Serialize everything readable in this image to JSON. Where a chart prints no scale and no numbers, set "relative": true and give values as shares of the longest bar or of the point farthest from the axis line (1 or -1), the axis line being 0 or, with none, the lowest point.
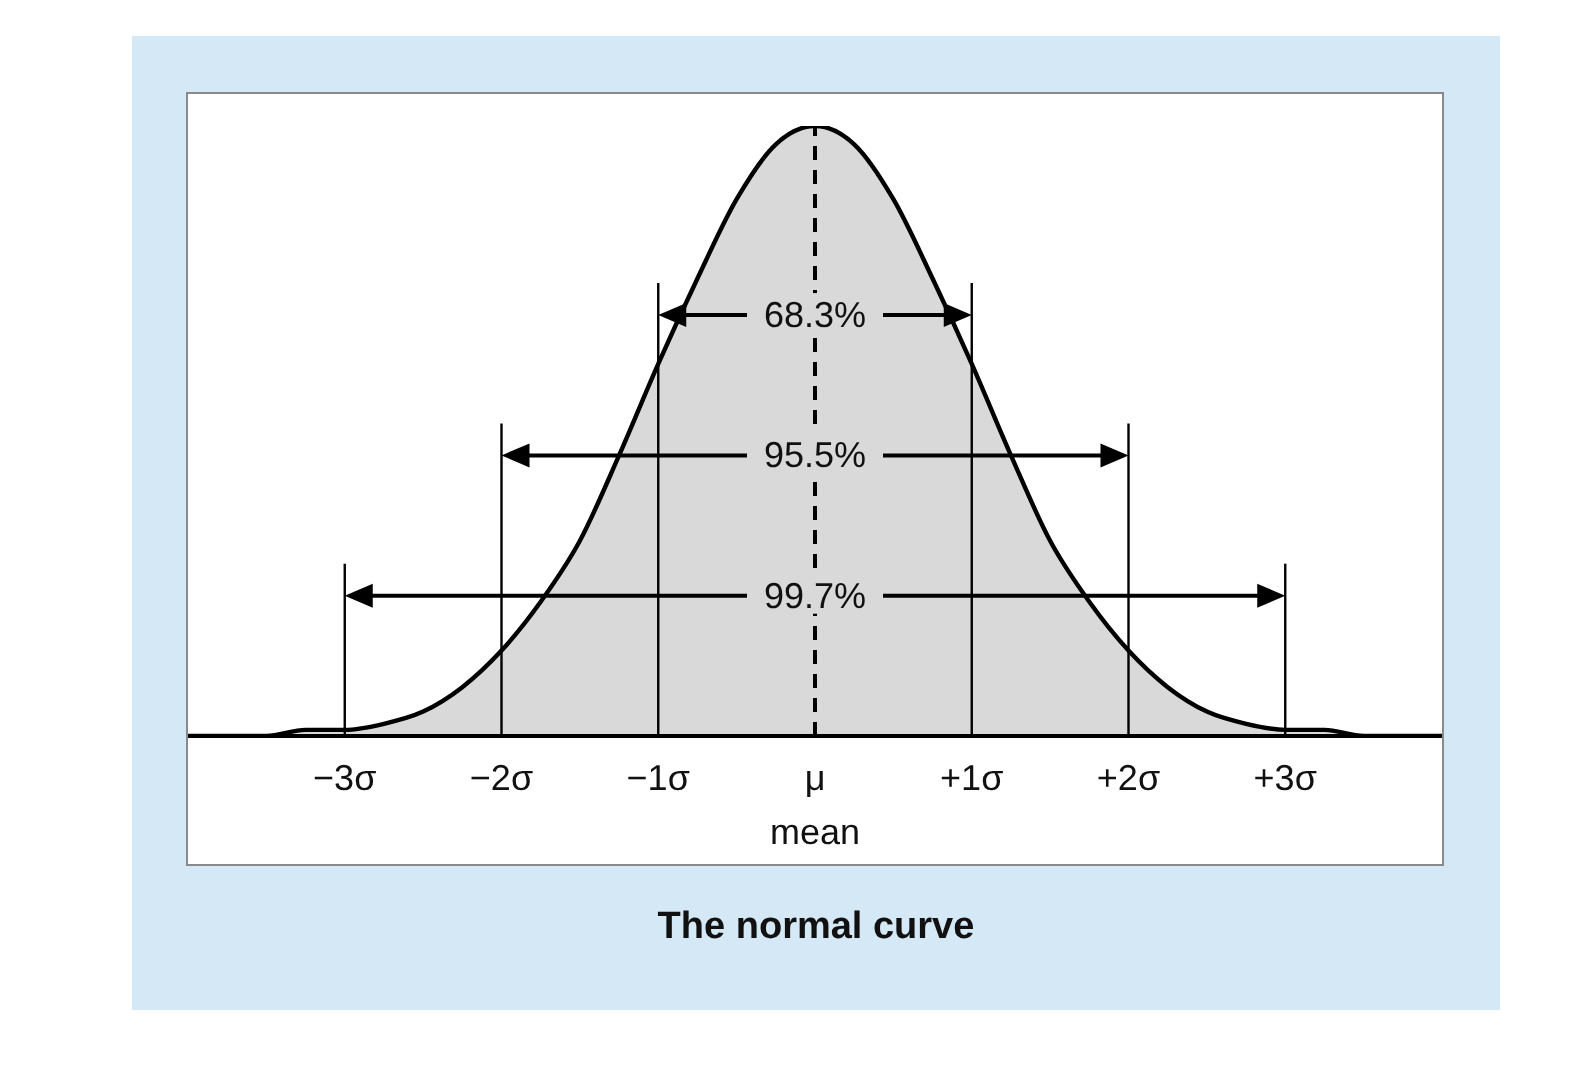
{
  "chart_data": {
    "type": "area",
    "title": "The normal curve",
    "xlabel": "mean",
    "relative": true,
    "x": [
      -4,
      -3.75,
      -3.5,
      -3.25,
      -3,
      -2.75,
      -2.5,
      -2.25,
      -2,
      -1.75,
      -1.5,
      -1.25,
      -1,
      -0.75,
      -0.5,
      -0.25,
      0,
      0.25,
      0.5,
      0.75,
      1,
      1.25,
      1.5,
      1.75,
      2,
      2.25,
      2.5,
      2.75,
      3,
      3.25,
      3.5,
      3.75,
      4
    ],
    "series": [
      {
        "color": "#d9d9d9",
        "values": [
          0,
          0,
          0,
          0.01,
          0.01,
          0.02,
          0.04,
          0.08,
          0.14,
          0.22,
          0.32,
          0.46,
          0.61,
          0.75,
          0.88,
          0.97,
          1,
          0.97,
          0.88,
          0.75,
          0.61,
          0.46,
          0.32,
          0.22,
          0.14,
          0.08,
          0.04,
          0.02,
          0.01,
          0.01,
          0,
          0,
          0
        ]
      }
    ],
    "xlim": [
      -4,
      4
    ],
    "xticks": [
      {
        "value": -3,
        "label": "−3σ"
      },
      {
        "value": -2,
        "label": "−2σ"
      },
      {
        "value": -1,
        "label": "−1σ"
      },
      {
        "value": 0,
        "label": "μ"
      },
      {
        "value": 1,
        "label": "+1σ"
      },
      {
        "value": 2,
        "label": "+2σ"
      },
      {
        "value": 3,
        "label": "+3σ"
      }
    ],
    "ref_lines": [
      {
        "axis": "x",
        "value": 0,
        "color": "#000000",
        "line_style": "dashed"
      }
    ],
    "annotations": [
      {
        "text": "68.3%",
        "y": 0.69
      },
      {
        "text": "95.5%",
        "y": 0.46
      },
      {
        "text": "99.7%",
        "y": 0.23
      }
    ],
    "legend": false
  }
}
